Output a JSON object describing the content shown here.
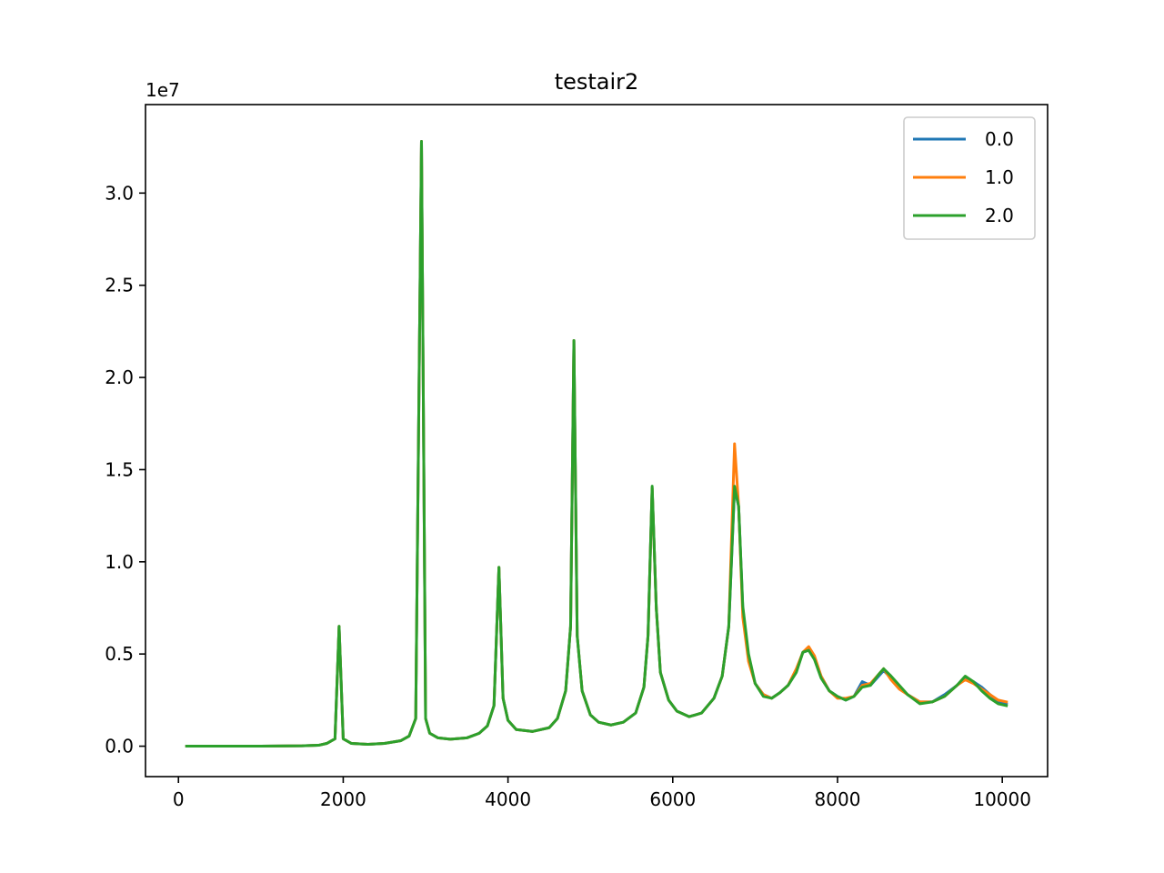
{
  "chart_data": {
    "type": "line",
    "title": "testair2",
    "xlabel": "",
    "ylabel": "",
    "y_offset_label": "1e7",
    "xlim": [
      -400,
      10550
    ],
    "ylim": [
      -1650000,
      34800000
    ],
    "x_ticks": [
      0,
      2000,
      4000,
      6000,
      8000,
      10000
    ],
    "x_tick_labels": [
      "0",
      "2000",
      "4000",
      "6000",
      "8000",
      "10000"
    ],
    "y_ticks": [
      0,
      5000000,
      10000000,
      15000000,
      20000000,
      25000000,
      30000000
    ],
    "y_tick_labels": [
      "0.0",
      "0.5",
      "1.0",
      "1.5",
      "2.0",
      "2.5",
      "3.0"
    ],
    "grid": false,
    "legend_position": "top-right",
    "series": [
      {
        "name": "0.0",
        "color": "#1f77b4",
        "points": [
          [
            100,
            0
          ],
          [
            500,
            0
          ],
          [
            1000,
            0
          ],
          [
            1500,
            20000
          ],
          [
            1700,
            50000
          ],
          [
            1800,
            150000
          ],
          [
            1900,
            400000
          ],
          [
            1950,
            6500000
          ],
          [
            2000,
            400000
          ],
          [
            2100,
            150000
          ],
          [
            2300,
            100000
          ],
          [
            2500,
            150000
          ],
          [
            2700,
            300000
          ],
          [
            2800,
            550000
          ],
          [
            2880,
            1500000
          ],
          [
            2950,
            32800000
          ],
          [
            3000,
            1500000
          ],
          [
            3050,
            700000
          ],
          [
            3150,
            450000
          ],
          [
            3300,
            380000
          ],
          [
            3500,
            450000
          ],
          [
            3650,
            700000
          ],
          [
            3750,
            1100000
          ],
          [
            3830,
            2200000
          ],
          [
            3890,
            9700000
          ],
          [
            3940,
            2600000
          ],
          [
            4000,
            1400000
          ],
          [
            4100,
            900000
          ],
          [
            4300,
            800000
          ],
          [
            4500,
            1000000
          ],
          [
            4600,
            1500000
          ],
          [
            4700,
            3000000
          ],
          [
            4760,
            6500000
          ],
          [
            4800,
            22000000
          ],
          [
            4840,
            6000000
          ],
          [
            4900,
            3000000
          ],
          [
            5000,
            1700000
          ],
          [
            5100,
            1300000
          ],
          [
            5250,
            1150000
          ],
          [
            5400,
            1300000
          ],
          [
            5550,
            1800000
          ],
          [
            5650,
            3200000
          ],
          [
            5700,
            6000000
          ],
          [
            5750,
            14000000
          ],
          [
            5800,
            7500000
          ],
          [
            5850,
            4000000
          ],
          [
            5950,
            2500000
          ],
          [
            6050,
            1900000
          ],
          [
            6200,
            1600000
          ],
          [
            6350,
            1800000
          ],
          [
            6500,
            2600000
          ],
          [
            6600,
            3800000
          ],
          [
            6680,
            6500000
          ],
          [
            6750,
            14000000
          ],
          [
            6800,
            13000000
          ],
          [
            6850,
            7500000
          ],
          [
            6920,
            4800000
          ],
          [
            7000,
            3400000
          ],
          [
            7100,
            2800000
          ],
          [
            7200,
            2600000
          ],
          [
            7300,
            2900000
          ],
          [
            7400,
            3300000
          ],
          [
            7500,
            4100000
          ],
          [
            7580,
            5100000
          ],
          [
            7650,
            5200000
          ],
          [
            7720,
            4800000
          ],
          [
            7800,
            3800000
          ],
          [
            7900,
            3000000
          ],
          [
            8000,
            2700000
          ],
          [
            8100,
            2500000
          ],
          [
            8200,
            2700000
          ],
          [
            8300,
            3500000
          ],
          [
            8400,
            3300000
          ],
          [
            8500,
            3800000
          ],
          [
            8560,
            4100000
          ],
          [
            8650,
            3700000
          ],
          [
            8750,
            3200000
          ],
          [
            8850,
            2800000
          ],
          [
            9000,
            2400000
          ],
          [
            9150,
            2400000
          ],
          [
            9300,
            2800000
          ],
          [
            9450,
            3300000
          ],
          [
            9550,
            3700000
          ],
          [
            9650,
            3500000
          ],
          [
            9750,
            3200000
          ],
          [
            9850,
            2800000
          ],
          [
            9950,
            2400000
          ],
          [
            10050,
            2300000
          ]
        ]
      },
      {
        "name": "1.0",
        "color": "#ff7f0e",
        "points": [
          [
            100,
            0
          ],
          [
            500,
            0
          ],
          [
            1000,
            0
          ],
          [
            1500,
            20000
          ],
          [
            1700,
            50000
          ],
          [
            1800,
            150000
          ],
          [
            1900,
            400000
          ],
          [
            1950,
            6500000
          ],
          [
            2000,
            400000
          ],
          [
            2100,
            150000
          ],
          [
            2300,
            100000
          ],
          [
            2500,
            150000
          ],
          [
            2700,
            300000
          ],
          [
            2800,
            550000
          ],
          [
            2880,
            1500000
          ],
          [
            2950,
            32800000
          ],
          [
            3000,
            1500000
          ],
          [
            3050,
            700000
          ],
          [
            3150,
            450000
          ],
          [
            3300,
            380000
          ],
          [
            3500,
            450000
          ],
          [
            3650,
            700000
          ],
          [
            3750,
            1100000
          ],
          [
            3830,
            2200000
          ],
          [
            3890,
            9700000
          ],
          [
            3940,
            2600000
          ],
          [
            4000,
            1400000
          ],
          [
            4100,
            900000
          ],
          [
            4300,
            800000
          ],
          [
            4500,
            1000000
          ],
          [
            4600,
            1500000
          ],
          [
            4700,
            3000000
          ],
          [
            4760,
            6500000
          ],
          [
            4800,
            22000000
          ],
          [
            4840,
            6000000
          ],
          [
            4900,
            3000000
          ],
          [
            5000,
            1700000
          ],
          [
            5100,
            1300000
          ],
          [
            5250,
            1150000
          ],
          [
            5400,
            1300000
          ],
          [
            5550,
            1800000
          ],
          [
            5650,
            3200000
          ],
          [
            5700,
            6000000
          ],
          [
            5750,
            14000000
          ],
          [
            5800,
            7500000
          ],
          [
            5850,
            4000000
          ],
          [
            5950,
            2500000
          ],
          [
            6050,
            1900000
          ],
          [
            6200,
            1600000
          ],
          [
            6350,
            1800000
          ],
          [
            6500,
            2600000
          ],
          [
            6600,
            3800000
          ],
          [
            6680,
            6500000
          ],
          [
            6750,
            16400000
          ],
          [
            6800,
            13000000
          ],
          [
            6850,
            7000000
          ],
          [
            6920,
            4600000
          ],
          [
            7000,
            3400000
          ],
          [
            7100,
            2800000
          ],
          [
            7200,
            2600000
          ],
          [
            7300,
            2900000
          ],
          [
            7400,
            3300000
          ],
          [
            7500,
            4200000
          ],
          [
            7580,
            5100000
          ],
          [
            7650,
            5400000
          ],
          [
            7720,
            4900000
          ],
          [
            7800,
            3800000
          ],
          [
            7900,
            3000000
          ],
          [
            8000,
            2600000
          ],
          [
            8100,
            2600000
          ],
          [
            8200,
            2700000
          ],
          [
            8300,
            3300000
          ],
          [
            8400,
            3400000
          ],
          [
            8500,
            3900000
          ],
          [
            8560,
            4200000
          ],
          [
            8650,
            3600000
          ],
          [
            8750,
            3100000
          ],
          [
            8850,
            2800000
          ],
          [
            9000,
            2400000
          ],
          [
            9150,
            2400000
          ],
          [
            9300,
            2700000
          ],
          [
            9450,
            3300000
          ],
          [
            9550,
            3600000
          ],
          [
            9650,
            3400000
          ],
          [
            9750,
            3100000
          ],
          [
            9850,
            2800000
          ],
          [
            9950,
            2500000
          ],
          [
            10050,
            2400000
          ]
        ]
      },
      {
        "name": "2.0",
        "color": "#2ca02c",
        "points": [
          [
            100,
            0
          ],
          [
            500,
            0
          ],
          [
            1000,
            0
          ],
          [
            1500,
            20000
          ],
          [
            1700,
            50000
          ],
          [
            1800,
            150000
          ],
          [
            1900,
            400000
          ],
          [
            1950,
            6500000
          ],
          [
            2000,
            400000
          ],
          [
            2100,
            150000
          ],
          [
            2300,
            100000
          ],
          [
            2500,
            150000
          ],
          [
            2700,
            300000
          ],
          [
            2800,
            550000
          ],
          [
            2880,
            1500000
          ],
          [
            2950,
            32800000
          ],
          [
            3000,
            1500000
          ],
          [
            3050,
            700000
          ],
          [
            3150,
            450000
          ],
          [
            3300,
            380000
          ],
          [
            3500,
            450000
          ],
          [
            3650,
            700000
          ],
          [
            3750,
            1100000
          ],
          [
            3830,
            2200000
          ],
          [
            3890,
            9700000
          ],
          [
            3940,
            2600000
          ],
          [
            4000,
            1400000
          ],
          [
            4100,
            900000
          ],
          [
            4300,
            800000
          ],
          [
            4500,
            1000000
          ],
          [
            4600,
            1500000
          ],
          [
            4700,
            3000000
          ],
          [
            4760,
            6500000
          ],
          [
            4800,
            22000000
          ],
          [
            4840,
            6000000
          ],
          [
            4900,
            3000000
          ],
          [
            5000,
            1700000
          ],
          [
            5100,
            1300000
          ],
          [
            5250,
            1150000
          ],
          [
            5400,
            1300000
          ],
          [
            5550,
            1800000
          ],
          [
            5650,
            3200000
          ],
          [
            5700,
            6000000
          ],
          [
            5750,
            14100000
          ],
          [
            5800,
            7500000
          ],
          [
            5850,
            4000000
          ],
          [
            5950,
            2500000
          ],
          [
            6050,
            1900000
          ],
          [
            6200,
            1600000
          ],
          [
            6350,
            1800000
          ],
          [
            6500,
            2600000
          ],
          [
            6600,
            3800000
          ],
          [
            6680,
            6500000
          ],
          [
            6750,
            14100000
          ],
          [
            6800,
            13000000
          ],
          [
            6850,
            7600000
          ],
          [
            6920,
            5000000
          ],
          [
            7000,
            3400000
          ],
          [
            7100,
            2700000
          ],
          [
            7200,
            2600000
          ],
          [
            7300,
            2900000
          ],
          [
            7400,
            3300000
          ],
          [
            7500,
            4000000
          ],
          [
            7580,
            5100000
          ],
          [
            7650,
            5200000
          ],
          [
            7720,
            4700000
          ],
          [
            7800,
            3700000
          ],
          [
            7900,
            3000000
          ],
          [
            8000,
            2700000
          ],
          [
            8100,
            2500000
          ],
          [
            8200,
            2700000
          ],
          [
            8300,
            3200000
          ],
          [
            8400,
            3300000
          ],
          [
            8500,
            3900000
          ],
          [
            8560,
            4200000
          ],
          [
            8650,
            3800000
          ],
          [
            8750,
            3300000
          ],
          [
            8850,
            2800000
          ],
          [
            9000,
            2300000
          ],
          [
            9150,
            2400000
          ],
          [
            9300,
            2700000
          ],
          [
            9450,
            3300000
          ],
          [
            9550,
            3800000
          ],
          [
            9650,
            3500000
          ],
          [
            9750,
            3000000
          ],
          [
            9850,
            2600000
          ],
          [
            9950,
            2300000
          ],
          [
            10050,
            2200000
          ]
        ]
      }
    ]
  }
}
